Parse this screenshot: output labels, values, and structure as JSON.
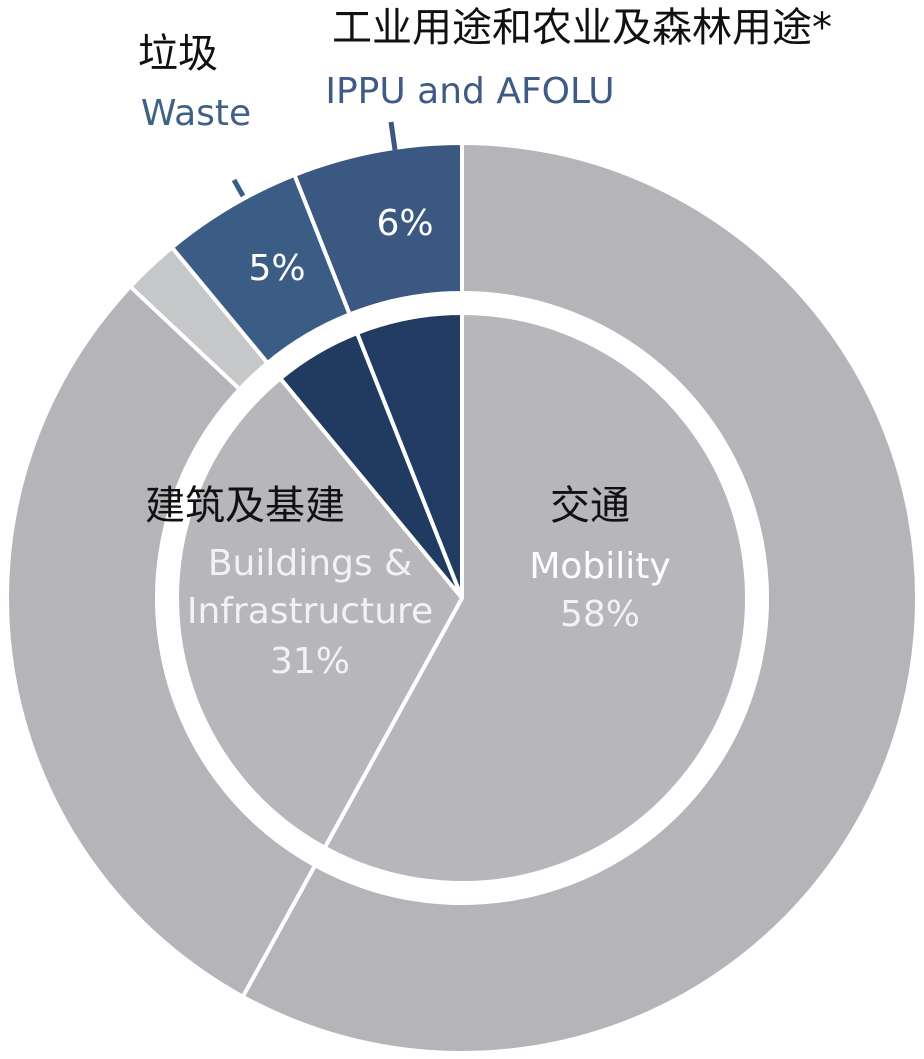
{
  "chart_data": {
    "type": "donut",
    "categories": [
      "交通",
      "建筑及基建",
      null,
      "垃圾",
      "工业用途和农业及森林用途*"
    ],
    "categories_en": [
      [
        "Mobility"
      ],
      [
        "Buildings &",
        "Infrastructure"
      ],
      null,
      [
        "Waste"
      ],
      [
        "IPPU and AFOLU"
      ]
    ],
    "series": [
      {
        "values": [
          58,
          29,
          2,
          5,
          6
        ],
        "value_labels": [
          null,
          null,
          null,
          "5%",
          "6%"
        ],
        "colors": [
          "#b5b4b8",
          "#b5b4b8",
          "#c5c7c9",
          "#3a5c85",
          "#3b5883"
        ]
      },
      {
        "values": [
          58,
          31,
          null,
          5,
          6
        ],
        "value_labels": [
          "58%",
          "31%",
          null,
          null,
          null
        ],
        "colors": [
          "#b7b6ba",
          "#b7b6ba",
          null,
          "#213a60",
          "#223b62"
        ]
      }
    ]
  }
}
